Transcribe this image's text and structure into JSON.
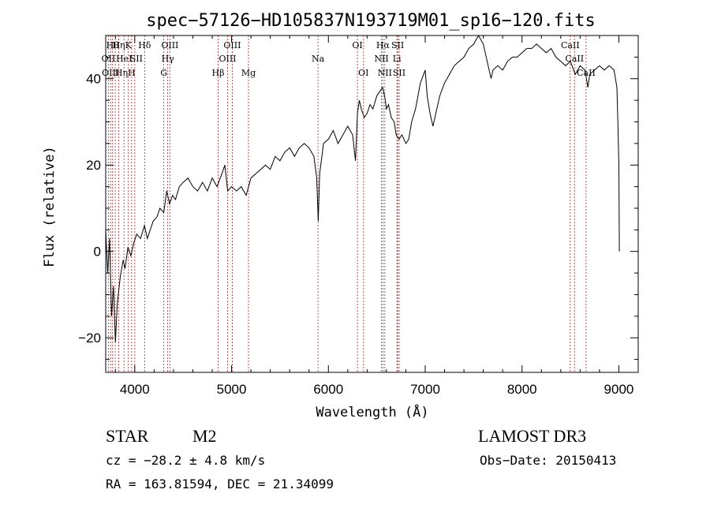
{
  "chart_data": {
    "type": "line",
    "title": "spec−57126−HD105837N193719M01_sp16−120.fits",
    "xlabel": "Wavelength (Å)",
    "ylabel": "Flux (relative)",
    "xlim": [
      3700,
      9200
    ],
    "ylim": [
      -28,
      50
    ],
    "xticks": [
      4000,
      5000,
      6000,
      7000,
      8000,
      9000
    ],
    "yticks": [
      -20,
      0,
      20,
      40
    ],
    "x_minor_step": 200,
    "y_minor_step": 5,
    "series": [
      {
        "name": "spectrum",
        "color": "#000000",
        "points": [
          [
            3700,
            5
          ],
          [
            3720,
            -5
          ],
          [
            3740,
            3
          ],
          [
            3760,
            -15
          ],
          [
            3780,
            -8
          ],
          [
            3800,
            -21
          ],
          [
            3820,
            -12
          ],
          [
            3850,
            -6
          ],
          [
            3880,
            -2
          ],
          [
            3900,
            -4
          ],
          [
            3930,
            1
          ],
          [
            3960,
            -1
          ],
          [
            3990,
            2
          ],
          [
            4020,
            4
          ],
          [
            4060,
            3
          ],
          [
            4100,
            6
          ],
          [
            4130,
            3
          ],
          [
            4160,
            5
          ],
          [
            4190,
            7
          ],
          [
            4230,
            8
          ],
          [
            4260,
            10
          ],
          [
            4300,
            9
          ],
          [
            4330,
            14
          ],
          [
            4360,
            11
          ],
          [
            4390,
            13
          ],
          [
            4420,
            12
          ],
          [
            4460,
            15
          ],
          [
            4500,
            16
          ],
          [
            4550,
            17
          ],
          [
            4600,
            15
          ],
          [
            4650,
            14
          ],
          [
            4700,
            16
          ],
          [
            4750,
            14
          ],
          [
            4800,
            17
          ],
          [
            4850,
            15
          ],
          [
            4900,
            18
          ],
          [
            4930,
            20
          ],
          [
            4960,
            14
          ],
          [
            5000,
            15
          ],
          [
            5050,
            14
          ],
          [
            5100,
            15
          ],
          [
            5150,
            13
          ],
          [
            5200,
            17
          ],
          [
            5250,
            18
          ],
          [
            5300,
            19
          ],
          [
            5350,
            20
          ],
          [
            5400,
            19
          ],
          [
            5450,
            22
          ],
          [
            5500,
            21
          ],
          [
            5550,
            23
          ],
          [
            5600,
            24
          ],
          [
            5650,
            22
          ],
          [
            5700,
            24
          ],
          [
            5750,
            25
          ],
          [
            5800,
            24
          ],
          [
            5850,
            22
          ],
          [
            5880,
            17
          ],
          [
            5895,
            7
          ],
          [
            5910,
            18
          ],
          [
            5950,
            25
          ],
          [
            6000,
            26
          ],
          [
            6050,
            28
          ],
          [
            6100,
            25
          ],
          [
            6150,
            27
          ],
          [
            6200,
            29
          ],
          [
            6250,
            27
          ],
          [
            6280,
            21
          ],
          [
            6300,
            32
          ],
          [
            6320,
            35
          ],
          [
            6340,
            33
          ],
          [
            6370,
            31
          ],
          [
            6400,
            32
          ],
          [
            6430,
            34
          ],
          [
            6460,
            33
          ],
          [
            6500,
            36
          ],
          [
            6530,
            37
          ],
          [
            6560,
            38
          ],
          [
            6580,
            36
          ],
          [
            6600,
            33
          ],
          [
            6620,
            34
          ],
          [
            6650,
            31
          ],
          [
            6680,
            30
          ],
          [
            6700,
            27
          ],
          [
            6730,
            26
          ],
          [
            6760,
            27
          ],
          [
            6800,
            25
          ],
          [
            6830,
            26
          ],
          [
            6860,
            30
          ],
          [
            6900,
            33
          ],
          [
            6950,
            39
          ],
          [
            7000,
            42
          ],
          [
            7020,
            36
          ],
          [
            7050,
            32
          ],
          [
            7080,
            29
          ],
          [
            7100,
            31
          ],
          [
            7150,
            36
          ],
          [
            7200,
            39
          ],
          [
            7250,
            41
          ],
          [
            7300,
            43
          ],
          [
            7350,
            44
          ],
          [
            7400,
            45
          ],
          [
            7450,
            47
          ],
          [
            7500,
            48
          ],
          [
            7550,
            50
          ],
          [
            7600,
            48
          ],
          [
            7650,
            43
          ],
          [
            7680,
            40
          ],
          [
            7700,
            42
          ],
          [
            7750,
            43
          ],
          [
            7800,
            42
          ],
          [
            7850,
            44
          ],
          [
            7900,
            45
          ],
          [
            7950,
            45
          ],
          [
            8000,
            46
          ],
          [
            8050,
            47
          ],
          [
            8100,
            47
          ],
          [
            8150,
            48
          ],
          [
            8200,
            47
          ],
          [
            8250,
            46
          ],
          [
            8300,
            47
          ],
          [
            8350,
            45
          ],
          [
            8400,
            44
          ],
          [
            8450,
            43
          ],
          [
            8500,
            44
          ],
          [
            8550,
            41
          ],
          [
            8600,
            43
          ],
          [
            8650,
            42
          ],
          [
            8680,
            38
          ],
          [
            8700,
            41
          ],
          [
            8750,
            42
          ],
          [
            8800,
            43
          ],
          [
            8850,
            42
          ],
          [
            8900,
            43
          ],
          [
            8950,
            42
          ],
          [
            8980,
            38
          ],
          [
            8990,
            30
          ],
          [
            9000,
            20
          ],
          [
            9005,
            0
          ]
        ]
      }
    ],
    "lines": [
      {
        "wl": 3727,
        "label": "OII",
        "row": 1,
        "dx": 0
      },
      {
        "wl": 3750,
        "label": "OIII",
        "row": 2,
        "dx": 0
      },
      {
        "wl": 3771,
        "label": "Hθ",
        "row": 0,
        "dx": 0
      },
      {
        "wl": 3798,
        "label": "Hη",
        "row": 2,
        "dx": 8
      },
      {
        "wl": 3835,
        "label": "Hη",
        "row": 0,
        "dx": 0
      },
      {
        "wl": 3889,
        "label": "HeI",
        "row": 1,
        "dx": 0
      },
      {
        "wl": 3934,
        "label": "K",
        "row": 0,
        "dx": 0
      },
      {
        "wl": 3968,
        "label": "H",
        "row": 2,
        "dx": 0
      },
      {
        "wl": 4000,
        "label": "SII",
        "row": 1,
        "dx": 2
      },
      {
        "wl": 4102,
        "label": "Hδ",
        "row": 0,
        "dx": 0
      },
      {
        "wl": 4300,
        "label": "G",
        "row": 2,
        "dx": 0
      },
      {
        "wl": 4341,
        "label": "Hγ",
        "row": 1,
        "dx": 0
      },
      {
        "wl": 4363,
        "label": "OIII",
        "row": 0,
        "dx": 0
      },
      {
        "wl": 4861,
        "label": "Hβ",
        "row": 2,
        "dx": 0
      },
      {
        "wl": 4959,
        "label": "OIII",
        "row": 1,
        "dx": 0
      },
      {
        "wl": 5007,
        "label": "OIII",
        "row": 0,
        "dx": 0
      },
      {
        "wl": 5175,
        "label": "Mg",
        "row": 2,
        "dx": 0
      },
      {
        "wl": 5893,
        "label": "Na",
        "row": 1,
        "dx": 0
      },
      {
        "wl": 6300,
        "label": "OI",
        "row": 0,
        "dx": 0
      },
      {
        "wl": 6363,
        "label": "OI",
        "row": 2,
        "dx": 0
      },
      {
        "wl": 6548,
        "label": "NII",
        "row": 1,
        "dx": 0
      },
      {
        "wl": 6563,
        "label": "Hα",
        "row": 0,
        "dx": 0
      },
      {
        "wl": 6583,
        "label": "NII",
        "row": 2,
        "dx": 0
      },
      {
        "wl": 6708,
        "label": "Li",
        "row": 1,
        "dx": 0
      },
      {
        "wl": 6716,
        "label": "SII",
        "row": 0,
        "dx": 0
      },
      {
        "wl": 6731,
        "label": "SII",
        "row": 2,
        "dx": 0
      },
      {
        "wl": 8498,
        "label": "CaII",
        "row": 0,
        "dx": 0
      },
      {
        "wl": 8542,
        "label": "CaII",
        "row": 1,
        "dx": 0
      },
      {
        "wl": 8662,
        "label": "CaII",
        "row": 2,
        "dx": 0
      }
    ]
  },
  "info": {
    "class_label": "STAR",
    "subclass": "M2",
    "survey": "LAMOST DR3",
    "cz": "cz = −28.2 ± 4.8 km/s",
    "obs_date": "Obs−Date: 20150413",
    "coords": "RA = 163.81594, DEC =  21.34099"
  }
}
